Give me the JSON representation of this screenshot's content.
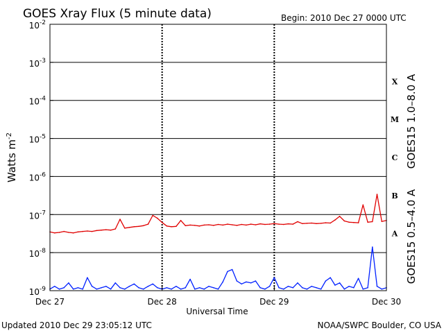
{
  "chart_data": {
    "type": "line",
    "title": "GOES Xray Flux (5 minute data)",
    "begin_label": "Begin:  2010 Dec 27 0000 UTC",
    "xlabel": "Universal Time",
    "ylabel_base": "Watts m",
    "ylabel_exp": "-2",
    "y_scale": "log",
    "ylim": [
      1e-09,
      0.01
    ],
    "y_ticks": [
      {
        "base": "10",
        "exp": "-2",
        "value": 0.01
      },
      {
        "base": "10",
        "exp": "-3",
        "value": 0.001
      },
      {
        "base": "10",
        "exp": "-4",
        "value": 0.0001
      },
      {
        "base": "10",
        "exp": "-5",
        "value": 1e-05
      },
      {
        "base": "10",
        "exp": "-6",
        "value": 1e-06
      },
      {
        "base": "10",
        "exp": "-7",
        "value": 1e-07
      },
      {
        "base": "10",
        "exp": "-8",
        "value": 1e-08
      },
      {
        "base": "10",
        "exp": "-9",
        "value": 1e-09
      }
    ],
    "x_ticks": [
      "Dec 27",
      "Dec 28",
      "Dec 29",
      "Dec 30"
    ],
    "x_range_hours": [
      0,
      72
    ],
    "flare_classes": [
      {
        "label": "X",
        "value": 0.000316
      },
      {
        "label": "M",
        "value": 3.16e-05
      },
      {
        "label": "C",
        "value": 3.16e-06
      },
      {
        "label": "B",
        "value": 3.16e-07
      },
      {
        "label": "A",
        "value": 3.16e-08
      }
    ],
    "grid_horizontal": true,
    "series": [
      {
        "name": "GOES15 1.0–8.0 A",
        "color": "#e00000",
        "x_hours": [
          0,
          1,
          2,
          3,
          4,
          5,
          6,
          7,
          8,
          9,
          10,
          11,
          12,
          13,
          14,
          15,
          16,
          17,
          18,
          19,
          20,
          21,
          22,
          23,
          24,
          25,
          26,
          27,
          28,
          29,
          30,
          31,
          32,
          33,
          34,
          35,
          36,
          37,
          38,
          39,
          40,
          41,
          42,
          43,
          44,
          45,
          46,
          47,
          48,
          49,
          50,
          51,
          52,
          53,
          54,
          55,
          56,
          57,
          58,
          59,
          60,
          61,
          62,
          63,
          64,
          65,
          66,
          67,
          68,
          69,
          70,
          71,
          72
        ],
        "values": [
          3.5e-08,
          3.3e-08,
          3.4e-08,
          3.6e-08,
          3.4e-08,
          3.3e-08,
          3.5e-08,
          3.6e-08,
          3.7e-08,
          3.6e-08,
          3.8e-08,
          3.9e-08,
          4e-08,
          3.9e-08,
          4.2e-08,
          7.5e-08,
          4.4e-08,
          4.6e-08,
          4.8e-08,
          4.9e-08,
          5.1e-08,
          5.6e-08,
          9.5e-08,
          8e-08,
          6.2e-08,
          5e-08,
          4.8e-08,
          4.9e-08,
          7e-08,
          5.1e-08,
          5.3e-08,
          5.2e-08,
          5e-08,
          5.3e-08,
          5.4e-08,
          5.2e-08,
          5.5e-08,
          5.3e-08,
          5.6e-08,
          5.4e-08,
          5.2e-08,
          5.5e-08,
          5.3e-08,
          5.6e-08,
          5.4e-08,
          5.7e-08,
          5.5e-08,
          5.6e-08,
          5.8e-08,
          5.6e-08,
          5.5e-08,
          5.7e-08,
          5.6e-08,
          6.5e-08,
          5.8e-08,
          5.9e-08,
          6e-08,
          5.8e-08,
          5.9e-08,
          6.1e-08,
          6e-08,
          7.2e-08,
          9e-08,
          6.8e-08,
          6.3e-08,
          6.2e-08,
          6.1e-08,
          1.8e-07,
          6.3e-08,
          6.5e-08,
          3.4e-07,
          6.6e-08,
          7e-08
        ]
      },
      {
        "name": "GOES15 0.5–4.0 A",
        "color": "#0020ff",
        "x_hours": [
          0,
          1,
          2,
          3,
          4,
          5,
          6,
          7,
          8,
          9,
          10,
          11,
          12,
          13,
          14,
          15,
          16,
          17,
          18,
          19,
          20,
          21,
          22,
          23,
          24,
          25,
          26,
          27,
          28,
          29,
          30,
          31,
          32,
          33,
          34,
          35,
          36,
          37,
          38,
          39,
          40,
          41,
          42,
          43,
          44,
          45,
          46,
          47,
          48,
          49,
          50,
          51,
          52,
          53,
          54,
          55,
          56,
          57,
          58,
          59,
          60,
          61,
          62,
          63,
          64,
          65,
          66,
          67,
          68,
          69,
          70,
          71,
          72
        ],
        "values": [
          1.1e-09,
          1.3e-09,
          1.1e-09,
          1.2e-09,
          1.6e-09,
          1.1e-09,
          1.2e-09,
          1.1e-09,
          2.2e-09,
          1.3e-09,
          1.1e-09,
          1.2e-09,
          1.3e-09,
          1.1e-09,
          1.6e-09,
          1.2e-09,
          1.1e-09,
          1.3e-09,
          1.5e-09,
          1.2e-09,
          1.1e-09,
          1.3e-09,
          1.5e-09,
          1.2e-09,
          1.1e-09,
          1.2e-09,
          1.1e-09,
          1.3e-09,
          1.1e-09,
          1.2e-09,
          2e-09,
          1.1e-09,
          1.2e-09,
          1.1e-09,
          1.3e-09,
          1.2e-09,
          1.1e-09,
          1.7e-09,
          3.2e-09,
          3.6e-09,
          1.8e-09,
          1.5e-09,
          1.7e-09,
          1.6e-09,
          1.8e-09,
          1.2e-09,
          1.1e-09,
          1.3e-09,
          2.2e-09,
          1.2e-09,
          1.1e-09,
          1.3e-09,
          1.2e-09,
          1.6e-09,
          1.2e-09,
          1.1e-09,
          1.3e-09,
          1.2e-09,
          1.1e-09,
          1.8e-09,
          2.2e-09,
          1.4e-09,
          1.6e-09,
          1.1e-09,
          1.3e-09,
          1.2e-09,
          2.1e-09,
          1.1e-09,
          1.2e-09,
          1.4e-08,
          1.3e-09,
          1.1e-09,
          1.2e-09
        ]
      }
    ]
  },
  "footer": {
    "updated": "Updated 2010 Dec 29 23:05:12 UTC",
    "credit": "NOAA/SWPC Boulder, CO USA"
  }
}
